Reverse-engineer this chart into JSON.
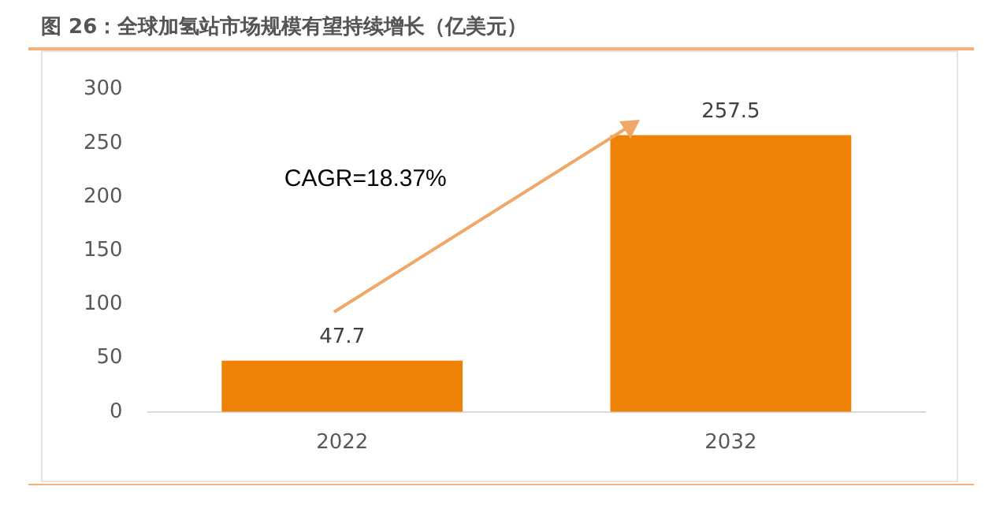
{
  "chart_data": {
    "type": "bar",
    "title": "图 26：全球加氢站市场规模有望持续增长（亿美元）",
    "categories": [
      "2022",
      "2032"
    ],
    "values": [
      47.7,
      257.5
    ],
    "color": "#ee8206",
    "ylim": [
      0,
      300
    ],
    "yticks": [
      0,
      50,
      100,
      150,
      200,
      250,
      300
    ],
    "grid": false,
    "data_labels": true,
    "annotations": [
      "CAGR=18.37%"
    ]
  }
}
